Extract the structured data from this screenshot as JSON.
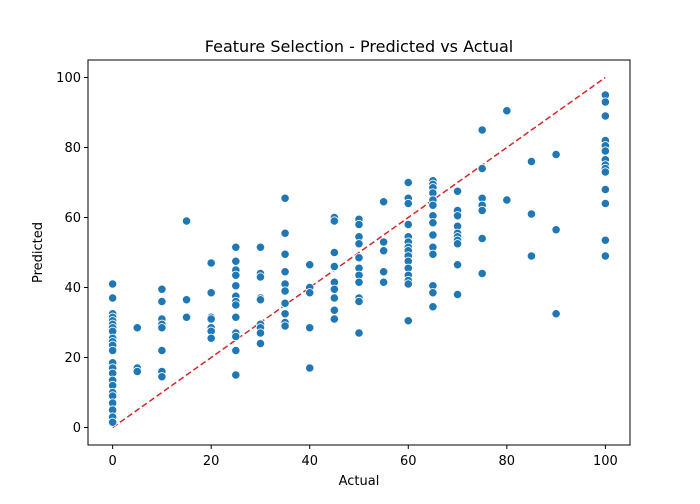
{
  "chart_data": {
    "type": "scatter",
    "title": "Feature Selection - Predicted vs Actual",
    "xlabel": "Actual",
    "ylabel": "Predicted",
    "xlim": [
      -5,
      105
    ],
    "ylim": [
      -5,
      105
    ],
    "xticks": [
      0,
      20,
      40,
      60,
      80,
      100
    ],
    "yticks": [
      0,
      20,
      40,
      60,
      80,
      100
    ],
    "grid": false,
    "point_color": "#1f77b4",
    "reference_line": {
      "from": [
        0,
        0
      ],
      "to": [
        100,
        100
      ],
      "color": "#d62728",
      "style": "dashed"
    },
    "points": [
      [
        0,
        41
      ],
      [
        0,
        37
      ],
      [
        0,
        32.5
      ],
      [
        0,
        31.5
      ],
      [
        0,
        30.5
      ],
      [
        0,
        29.5
      ],
      [
        0,
        28.5
      ],
      [
        0,
        27.5
      ],
      [
        0,
        25.5
      ],
      [
        0,
        24.5
      ],
      [
        0,
        23.5
      ],
      [
        0,
        22
      ],
      [
        0,
        18.5
      ],
      [
        0,
        17
      ],
      [
        0,
        15.5
      ],
      [
        0,
        13.5
      ],
      [
        0,
        12
      ],
      [
        0,
        10
      ],
      [
        0,
        9
      ],
      [
        0,
        7
      ],
      [
        0,
        5
      ],
      [
        0,
        3
      ],
      [
        0,
        1.5
      ],
      [
        5,
        28.5
      ],
      [
        5,
        17
      ],
      [
        5,
        16
      ],
      [
        10,
        39.5
      ],
      [
        10,
        36
      ],
      [
        10,
        31
      ],
      [
        10,
        29.5
      ],
      [
        10,
        28.5
      ],
      [
        10,
        22
      ],
      [
        10,
        16
      ],
      [
        10,
        14.5
      ],
      [
        15,
        59
      ],
      [
        15,
        36.5
      ],
      [
        15,
        31.5
      ],
      [
        20,
        47
      ],
      [
        20,
        38.5
      ],
      [
        20,
        31.5
      ],
      [
        20,
        31
      ],
      [
        20,
        28.5
      ],
      [
        20,
        27.5
      ],
      [
        20,
        25.5
      ],
      [
        25,
        51.5
      ],
      [
        25,
        47.5
      ],
      [
        25,
        45
      ],
      [
        25,
        43.5
      ],
      [
        25,
        40.5
      ],
      [
        25,
        37.5
      ],
      [
        25,
        36
      ],
      [
        25,
        35
      ],
      [
        25,
        31.5
      ],
      [
        25,
        27
      ],
      [
        25,
        26
      ],
      [
        25,
        22
      ],
      [
        25,
        15
      ],
      [
        30,
        51.5
      ],
      [
        30,
        44
      ],
      [
        30,
        43
      ],
      [
        30,
        37
      ],
      [
        30,
        36.5
      ],
      [
        30,
        29.5
      ],
      [
        30,
        28.5
      ],
      [
        30,
        27
      ],
      [
        30,
        24
      ],
      [
        35,
        65.5
      ],
      [
        35,
        55.5
      ],
      [
        35,
        49.5
      ],
      [
        35,
        44.5
      ],
      [
        35,
        41
      ],
      [
        35,
        39
      ],
      [
        35,
        35.5
      ],
      [
        35,
        32.5
      ],
      [
        35,
        30
      ],
      [
        35,
        29
      ],
      [
        40,
        46.5
      ],
      [
        40,
        40
      ],
      [
        40,
        38.5
      ],
      [
        40,
        28.5
      ],
      [
        40,
        17
      ],
      [
        45,
        60
      ],
      [
        45,
        59
      ],
      [
        45,
        50
      ],
      [
        45,
        46
      ],
      [
        45,
        41.5
      ],
      [
        45,
        39.5
      ],
      [
        45,
        37
      ],
      [
        45,
        33.5
      ],
      [
        45,
        31
      ],
      [
        50,
        59.5
      ],
      [
        50,
        58
      ],
      [
        50,
        54.5
      ],
      [
        50,
        52.5
      ],
      [
        50,
        48.5
      ],
      [
        50,
        45.5
      ],
      [
        50,
        43.5
      ],
      [
        50,
        41.5
      ],
      [
        50,
        37
      ],
      [
        50,
        36
      ],
      [
        50,
        27
      ],
      [
        55,
        64.5
      ],
      [
        55,
        53
      ],
      [
        55,
        50.5
      ],
      [
        55,
        44.5
      ],
      [
        55,
        41.5
      ],
      [
        60,
        70
      ],
      [
        60,
        65.5
      ],
      [
        60,
        64
      ],
      [
        60,
        58
      ],
      [
        60,
        54.5
      ],
      [
        60,
        53
      ],
      [
        60,
        51.5
      ],
      [
        60,
        50.5
      ],
      [
        60,
        49
      ],
      [
        60,
        47.5
      ],
      [
        60,
        45.5
      ],
      [
        60,
        43.5
      ],
      [
        60,
        42
      ],
      [
        60,
        41
      ],
      [
        60,
        30.5
      ],
      [
        65,
        70.5
      ],
      [
        65,
        69.5
      ],
      [
        65,
        68.5
      ],
      [
        65,
        67
      ],
      [
        65,
        65
      ],
      [
        65,
        63.5
      ],
      [
        65,
        60.5
      ],
      [
        65,
        58.5
      ],
      [
        65,
        55
      ],
      [
        65,
        51.5
      ],
      [
        65,
        49.5
      ],
      [
        65,
        40.5
      ],
      [
        65,
        38.5
      ],
      [
        65,
        34.5
      ],
      [
        70,
        67.5
      ],
      [
        70,
        62
      ],
      [
        70,
        60.5
      ],
      [
        70,
        57.5
      ],
      [
        70,
        55.5
      ],
      [
        70,
        54.5
      ],
      [
        70,
        53.5
      ],
      [
        70,
        52.5
      ],
      [
        70,
        46.5
      ],
      [
        70,
        38
      ],
      [
        75,
        85
      ],
      [
        75,
        74
      ],
      [
        75,
        65.5
      ],
      [
        75,
        63.5
      ],
      [
        75,
        62
      ],
      [
        75,
        54
      ],
      [
        75,
        44
      ],
      [
        80,
        90.5
      ],
      [
        80,
        65
      ],
      [
        85,
        76
      ],
      [
        85,
        61
      ],
      [
        85,
        49
      ],
      [
        90,
        78
      ],
      [
        90,
        56.5
      ],
      [
        90,
        32.5
      ],
      [
        100,
        95
      ],
      [
        100,
        93
      ],
      [
        100,
        89
      ],
      [
        100,
        82
      ],
      [
        100,
        80.5
      ],
      [
        100,
        79
      ],
      [
        100,
        76.5
      ],
      [
        100,
        75
      ],
      [
        100,
        74
      ],
      [
        100,
        73
      ],
      [
        100,
        68
      ],
      [
        100,
        64
      ],
      [
        100,
        53.5
      ],
      [
        100,
        49
      ]
    ]
  }
}
